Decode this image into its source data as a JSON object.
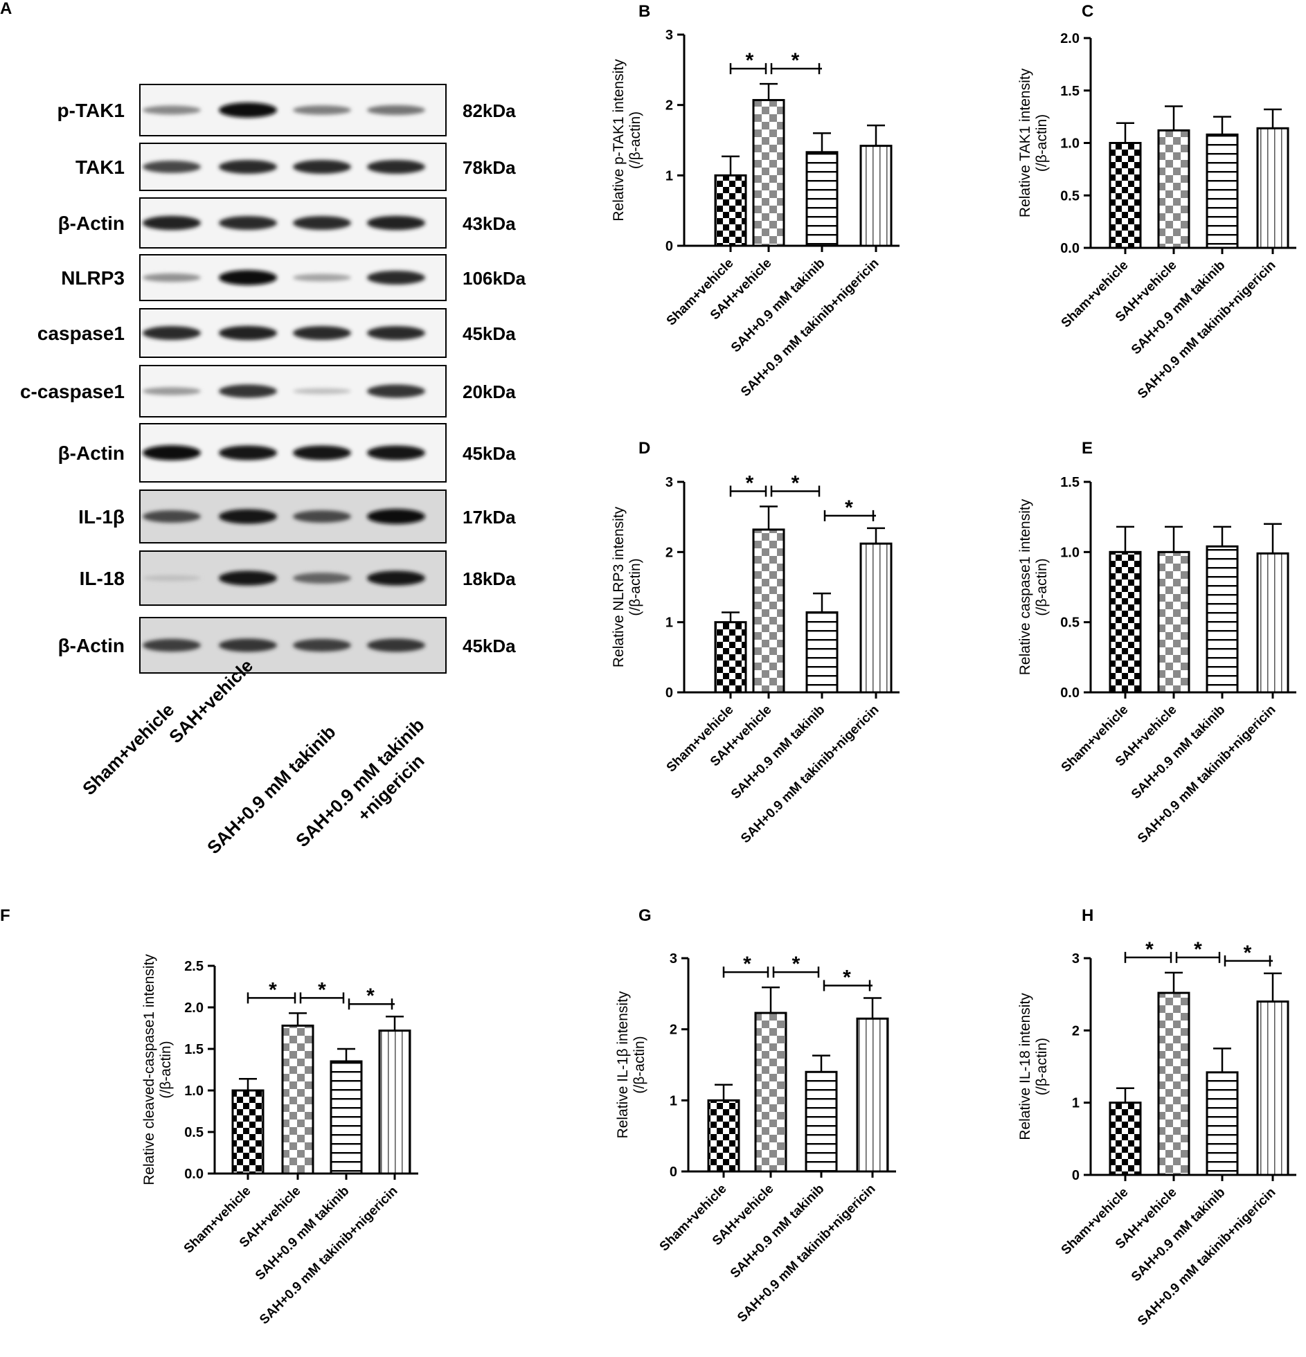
{
  "panel_letters": [
    "A",
    "B",
    "C",
    "D",
    "E",
    "F",
    "G",
    "H"
  ],
  "western_blot": {
    "rows": [
      {
        "protein": "p-TAK1",
        "kda": "82kDa"
      },
      {
        "protein": "TAK1",
        "kda": "78kDa"
      },
      {
        "protein": "β-Actin",
        "kda": "43kDa"
      },
      {
        "protein": "NLRP3",
        "kda": "106kDa"
      },
      {
        "protein": "caspase1",
        "kda": "45kDa"
      },
      {
        "protein": "c-caspase1",
        "kda": "20kDa"
      },
      {
        "protein": "β-Actin",
        "kda": "45kDa"
      },
      {
        "protein": "IL-1β",
        "kda": "17kDa"
      },
      {
        "protein": "IL-18",
        "kda": "18kDa"
      },
      {
        "protein": "β-Actin",
        "kda": "45kDa"
      }
    ],
    "band_intensity": [
      [
        0.35,
        1.0,
        0.4,
        0.45
      ],
      [
        0.7,
        0.85,
        0.85,
        0.85
      ],
      [
        0.9,
        0.85,
        0.85,
        0.9
      ],
      [
        0.3,
        1.0,
        0.2,
        0.85
      ],
      [
        0.85,
        0.9,
        0.85,
        0.85
      ],
      [
        0.25,
        0.8,
        0.05,
        0.8
      ],
      [
        1.0,
        0.95,
        0.95,
        0.95
      ],
      [
        0.7,
        0.95,
        0.7,
        1.0
      ],
      [
        0.05,
        0.95,
        0.55,
        0.95
      ],
      [
        0.75,
        0.8,
        0.75,
        0.8
      ]
    ],
    "groups": [
      "Sham+vehicle",
      "SAH+vehicle",
      "SAH+0.9 mM takinib",
      "SAH+0.9 mM takinib",
      "+nigericin"
    ]
  },
  "chart_data": [
    {
      "panel": "B",
      "type": "bar",
      "categories": [
        "Sham+vehicle",
        "SAH+vehicle",
        "SAH+0.9 mM takinib",
        "SAH+0.9 mM takinib+nigericin"
      ],
      "values": [
        1.0,
        2.07,
        1.33,
        1.42
      ],
      "errors": [
        0.27,
        0.23,
        0.27,
        0.29
      ],
      "ylabel": [
        "Relative p-TAK1 intensity",
        "(/β-actin)"
      ],
      "ylim": [
        0,
        3
      ],
      "yticks": [
        "0",
        "1",
        "2",
        "3"
      ],
      "significance": [
        {
          "from": 0,
          "to": 1,
          "label": "*"
        },
        {
          "from": 1,
          "to": 2,
          "label": "*"
        }
      ]
    },
    {
      "panel": "C",
      "type": "bar",
      "categories": [
        "Sham+vehicle",
        "SAH+vehicle",
        "SAH+0.9 mM takinib",
        "SAH+0.9 mM takinib+nigericin"
      ],
      "values": [
        1.0,
        1.12,
        1.08,
        1.14
      ],
      "errors": [
        0.19,
        0.23,
        0.17,
        0.18
      ],
      "ylabel": [
        "Relative TAK1 intensity",
        "(/β-actin)"
      ],
      "ylim": [
        0,
        2.0
      ],
      "yticks": [
        "0.0",
        "0.5",
        "1.0",
        "1.5",
        "2.0"
      ],
      "significance": []
    },
    {
      "panel": "D",
      "type": "bar",
      "categories": [
        "Sham+vehicle",
        "SAH+vehicle",
        "SAH+0.9 mM takinib",
        "SAH+0.9 mM takinib+nigericin"
      ],
      "values": [
        1.0,
        2.32,
        1.14,
        2.12
      ],
      "errors": [
        0.14,
        0.33,
        0.27,
        0.22
      ],
      "ylabel": [
        "Relative NLRP3 intensity",
        "(/β-actin)"
      ],
      "ylim": [
        0,
        3
      ],
      "yticks": [
        "0",
        "1",
        "2",
        "3"
      ],
      "significance": [
        {
          "from": 0,
          "to": 1,
          "label": "*"
        },
        {
          "from": 1,
          "to": 2,
          "label": "*"
        },
        {
          "from": 2,
          "to": 3,
          "label": "*"
        }
      ]
    },
    {
      "panel": "E",
      "type": "bar",
      "categories": [
        "Sham+vehicle",
        "SAH+vehicle",
        "SAH+0.9 mM takinib",
        "SAH+0.9 mM takinib+nigericin"
      ],
      "values": [
        1.0,
        1.0,
        1.04,
        0.99
      ],
      "errors": [
        0.18,
        0.18,
        0.14,
        0.21
      ],
      "ylabel": [
        "Relative caspase1 intensity",
        "(/β-actin)"
      ],
      "ylim": [
        0,
        1.5
      ],
      "yticks": [
        "0.0",
        "0.5",
        "1.0",
        "1.5"
      ],
      "significance": []
    },
    {
      "panel": "F",
      "type": "bar",
      "categories": [
        "Sham+vehicle",
        "SAH+vehicle",
        "SAH+0.9 mM takinib",
        "SAH+0.9 mM takinib+nigericin"
      ],
      "values": [
        1.0,
        1.78,
        1.35,
        1.72
      ],
      "errors": [
        0.14,
        0.15,
        0.15,
        0.17
      ],
      "ylabel": [
        "Relative cleaved-caspase1 intensity",
        "(/β-actin)"
      ],
      "ylim": [
        0,
        2.5
      ],
      "yticks": [
        "0.0",
        "0.5",
        "1.0",
        "1.5",
        "2.0",
        "2.5"
      ],
      "significance": [
        {
          "from": 0,
          "to": 1,
          "label": "*"
        },
        {
          "from": 1,
          "to": 2,
          "label": "*"
        },
        {
          "from": 2,
          "to": 3,
          "label": "*"
        }
      ]
    },
    {
      "panel": "G",
      "type": "bar",
      "categories": [
        "Sham+vehicle",
        "SAH+vehicle",
        "SAH+0.9 mM takinib",
        "SAH+0.9 mM takinib+nigericin"
      ],
      "values": [
        1.0,
        2.23,
        1.4,
        2.15
      ],
      "errors": [
        0.22,
        0.36,
        0.23,
        0.29
      ],
      "ylabel": [
        "Relative IL-1β intensity",
        "(/β-actin)"
      ],
      "ylim": [
        0,
        3
      ],
      "yticks": [
        "0",
        "1",
        "2",
        "3"
      ],
      "significance": [
        {
          "from": 0,
          "to": 1,
          "label": "*"
        },
        {
          "from": 1,
          "to": 2,
          "label": "*"
        },
        {
          "from": 2,
          "to": 3,
          "label": "*"
        }
      ]
    },
    {
      "panel": "H",
      "type": "bar",
      "categories": [
        "Sham+vehicle",
        "SAH+vehicle",
        "SAH+0.9 mM takinib",
        "SAH+0.9 mM takinib+nigericin"
      ],
      "values": [
        1.0,
        2.52,
        1.42,
        2.4
      ],
      "errors": [
        0.2,
        0.28,
        0.33,
        0.39
      ],
      "ylabel": [
        "Relative IL-18 intensity",
        "(/β-actin)"
      ],
      "ylim": [
        0,
        3
      ],
      "yticks": [
        "0",
        "1",
        "2",
        "3"
      ],
      "significance": [
        {
          "from": 0,
          "to": 1,
          "label": "*"
        },
        {
          "from": 1,
          "to": 2,
          "label": "*"
        },
        {
          "from": 2,
          "to": 3,
          "label": "*"
        }
      ]
    }
  ]
}
